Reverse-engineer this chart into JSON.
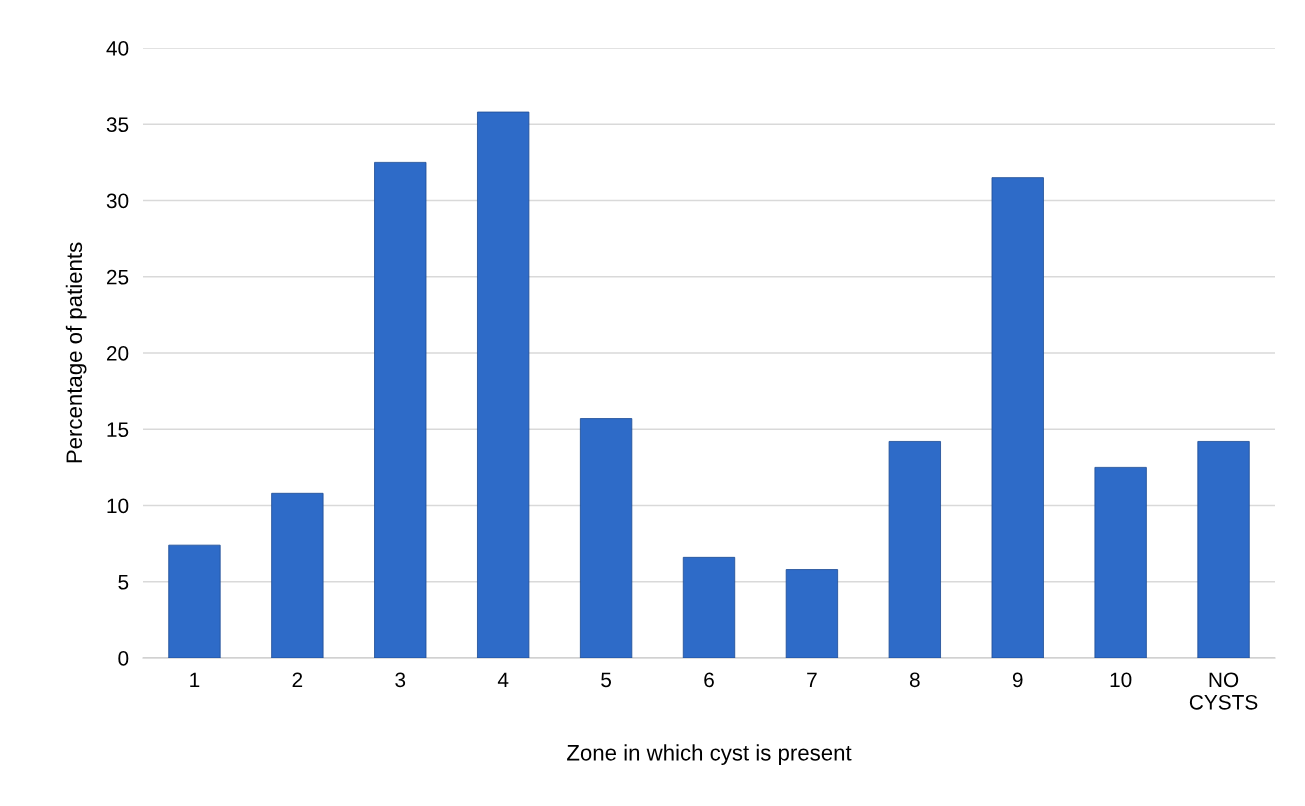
{
  "chart_data": {
    "type": "bar",
    "xlabel": "Zone in which cyst is present",
    "ylabel": "Percentage of patients",
    "categories": [
      "1",
      "2",
      "3",
      "4",
      "5",
      "6",
      "7",
      "8",
      "9",
      "10",
      "NO\nCYSTS"
    ],
    "values": [
      7.4,
      10.8,
      32.5,
      35.8,
      15.7,
      6.6,
      5.8,
      14.2,
      31.5,
      12.5,
      14.2
    ],
    "color": "#2e6bc8",
    "ylim": [
      0,
      40
    ],
    "yticks": [
      0,
      5,
      10,
      15,
      20,
      25,
      30,
      35,
      40
    ],
    "grid": "y"
  }
}
